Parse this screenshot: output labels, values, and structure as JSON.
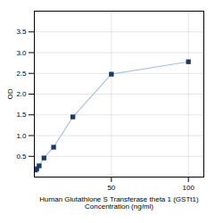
{
  "chart_data": {
    "type": "line",
    "xlabel": "Human Glutathione S Transferase theta 1 (GSTt1)\nConcentration (ng/ml)",
    "ylabel": "OD",
    "x": [
      0.78,
      1.56,
      3.13,
      6.25,
      12.5,
      25,
      50,
      100
    ],
    "series": [
      {
        "type": "line",
        "color": "#a8c4e0",
        "values": [
          0.17,
          0.2,
          0.27,
          0.46,
          0.72,
          1.45,
          2.48,
          2.78
        ]
      },
      {
        "type": "scatter",
        "color": "#1a3a6b",
        "marker": "square",
        "values": [
          0.17,
          0.2,
          0.27,
          0.46,
          0.72,
          1.45,
          2.48,
          2.78
        ]
      }
    ],
    "xlim": [
      0,
      110
    ],
    "ylim": [
      0,
      4.0
    ],
    "xticks": [
      50,
      100
    ],
    "yticks": [
      0.5,
      {
        "value": 1,
        "label": "1.0"
      },
      1.5,
      {
        "value": 2,
        "label": "2.0"
      },
      2.5,
      {
        "value": 3,
        "label": "3.0"
      },
      3.5
    ],
    "grid": true
  }
}
